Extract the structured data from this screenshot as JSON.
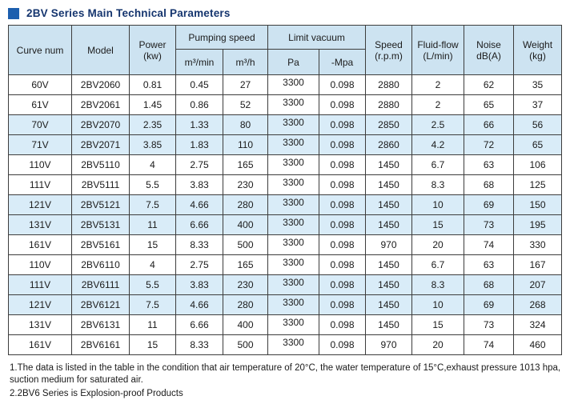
{
  "title": "2BV Series Main Technical Parameters",
  "accent_colors": {
    "title_square_blue": "#1d5fae",
    "title_text_navy": "#15356e",
    "header_bg": "#cde3f1",
    "shaded_row_bg": "#d9ecf8",
    "border": "#3d3d3d"
  },
  "table": {
    "headers": {
      "curve_num": "Curve num",
      "model": "Model",
      "power_line1": "Power",
      "power_line2": "(kw)",
      "pumping_speed": "Pumping speed",
      "limit_vacuum": "Limit vacuum",
      "m3_min": "m³/min",
      "m3_h": "m³/h",
      "pa": "Pa",
      "mpa": "-Mpa",
      "speed_line1": "Speed",
      "speed_line2": "(r.p.m)",
      "fluid_line1": "Fluid-flow",
      "fluid_line2": "(L/min)",
      "noise_line1": "Noise",
      "noise_line2": "dB(A)",
      "weight_line1": "Weight",
      "weight_line2": "(kg)"
    },
    "rows": [
      [
        "60V",
        "2BV2060",
        "0.81",
        "0.45",
        "27",
        "3300",
        "0.098",
        "2880",
        "2",
        "62",
        "35"
      ],
      [
        "61V",
        "2BV2061",
        "1.45",
        "0.86",
        "52",
        "3300",
        "0.098",
        "2880",
        "2",
        "65",
        "37"
      ],
      [
        "70V",
        "2BV2070",
        "2.35",
        "1.33",
        "80",
        "3300",
        "0.098",
        "2850",
        "2.5",
        "66",
        "56"
      ],
      [
        "71V",
        "2BV2071",
        "3.85",
        "1.83",
        "110",
        "3300",
        "0.098",
        "2860",
        "4.2",
        "72",
        "65"
      ],
      [
        "110V",
        "2BV5110",
        "4",
        "2.75",
        "165",
        "3300",
        "0.098",
        "1450",
        "6.7",
        "63",
        "106"
      ],
      [
        "111V",
        "2BV5111",
        "5.5",
        "3.83",
        "230",
        "3300",
        "0.098",
        "1450",
        "8.3",
        "68",
        "125"
      ],
      [
        "121V",
        "2BV5121",
        "7.5",
        "4.66",
        "280",
        "3300",
        "0.098",
        "1450",
        "10",
        "69",
        "150"
      ],
      [
        "131V",
        "2BV5131",
        "11",
        "6.66",
        "400",
        "3300",
        "0.098",
        "1450",
        "15",
        "73",
        "195"
      ],
      [
        "161V",
        "2BV5161",
        "15",
        "8.33",
        "500",
        "3300",
        "0.098",
        "970",
        "20",
        "74",
        "330"
      ],
      [
        "110V",
        "2BV6110",
        "4",
        "2.75",
        "165",
        "3300",
        "0.098",
        "1450",
        "6.7",
        "63",
        "167"
      ],
      [
        "111V",
        "2BV6111",
        "5.5",
        "3.83",
        "230",
        "3300",
        "0.098",
        "1450",
        "8.3",
        "68",
        "207"
      ],
      [
        "121V",
        "2BV6121",
        "7.5",
        "4.66",
        "280",
        "3300",
        "0.098",
        "1450",
        "10",
        "69",
        "268"
      ],
      [
        "131V",
        "2BV6131",
        "11",
        "6.66",
        "400",
        "3300",
        "0.098",
        "1450",
        "15",
        "73",
        "324"
      ],
      [
        "161V",
        "2BV6161",
        "15",
        "8.33",
        "500",
        "3300",
        "0.098",
        "970",
        "20",
        "74",
        "460"
      ]
    ]
  },
  "notes": {
    "note1": "1.The data is listed in the table in the condition that air temperature of 20°C, the water temperature of 15°C,exhaust pressure 1013 hpa, suction medium for saturated air.",
    "note2": "2.2BV6 Series is Explosion-proof Products"
  }
}
